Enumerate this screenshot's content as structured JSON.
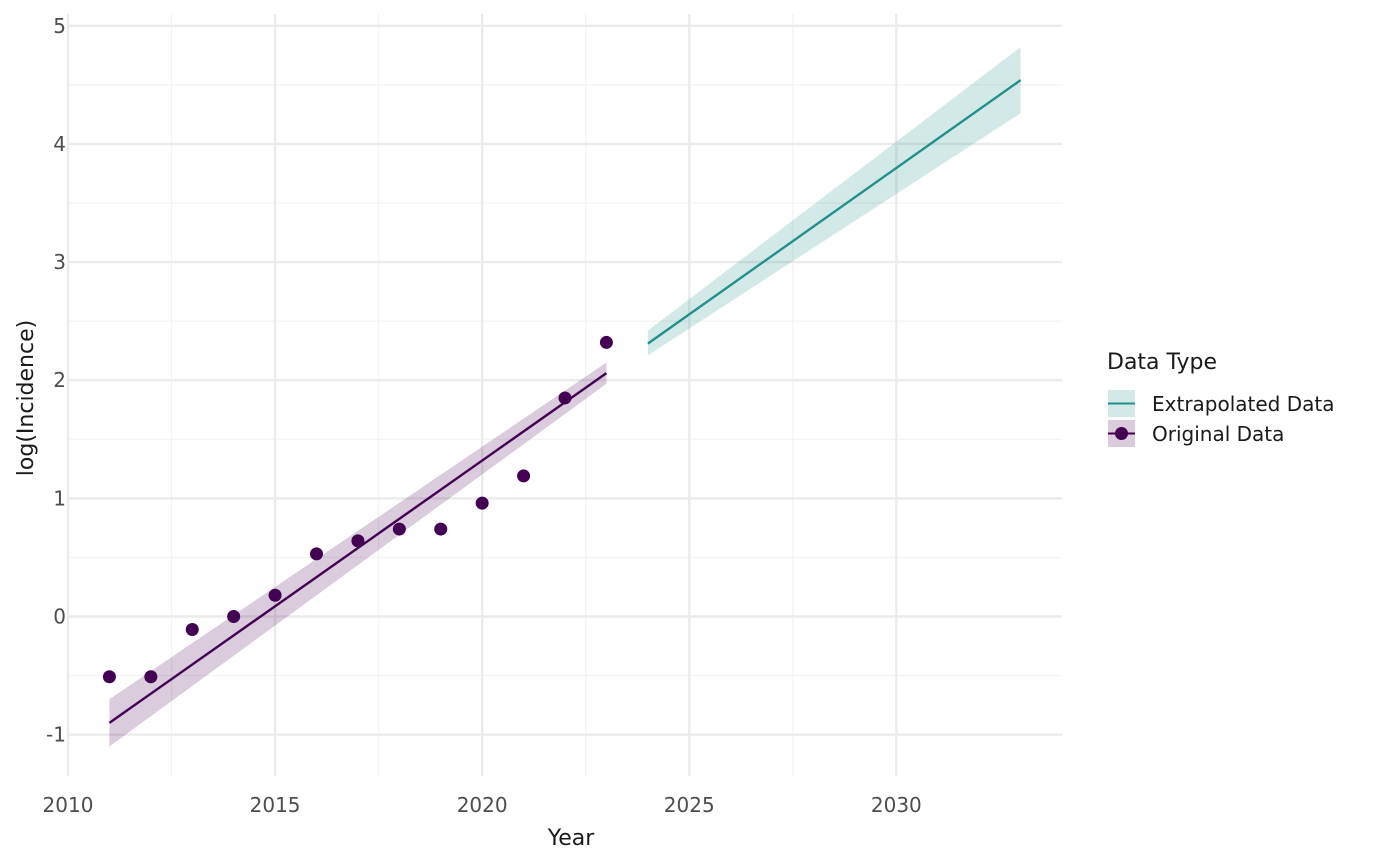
{
  "chart_data": {
    "type": "line",
    "xlabel": "Year",
    "ylabel": "log(Incidence)",
    "xlim": [
      2010,
      2034
    ],
    "ylim": [
      -1.35,
      5.1
    ],
    "x_ticks": [
      2010,
      2015,
      2020,
      2025,
      2030
    ],
    "y_ticks": [
      -1,
      0,
      1,
      2,
      3,
      4,
      5
    ],
    "grid": true,
    "legend": {
      "title": "Data Type",
      "placement": "right",
      "entries": [
        {
          "label": "Extrapolated Data",
          "color": "#21908d"
        },
        {
          "label": "Original Data",
          "color": "#440154"
        }
      ]
    },
    "series": [
      {
        "name": "Original Data",
        "color": "#440154",
        "points": {
          "x": [
            2011,
            2012,
            2013,
            2014,
            2015,
            2016,
            2017,
            2018,
            2019,
            2020,
            2021,
            2022,
            2023
          ],
          "y": [
            -0.51,
            -0.51,
            -0.11,
            0.0,
            0.18,
            0.53,
            0.64,
            0.74,
            0.74,
            0.96,
            1.19,
            1.85,
            2.32
          ]
        },
        "fit": {
          "x": [
            2011,
            2023
          ],
          "y": [
            -0.9,
            2.06
          ]
        },
        "band": {
          "x": [
            2011,
            2023
          ],
          "lower": [
            -1.1,
            1.97
          ],
          "upper": [
            -0.7,
            2.15
          ]
        }
      },
      {
        "name": "Extrapolated Data",
        "color": "#21908d",
        "fit": {
          "x": [
            2024,
            2033
          ],
          "y": [
            2.31,
            4.54
          ]
        },
        "band": {
          "x": [
            2024,
            2033
          ],
          "lower": [
            2.21,
            4.26
          ],
          "upper": [
            2.42,
            4.82
          ]
        }
      }
    ]
  }
}
